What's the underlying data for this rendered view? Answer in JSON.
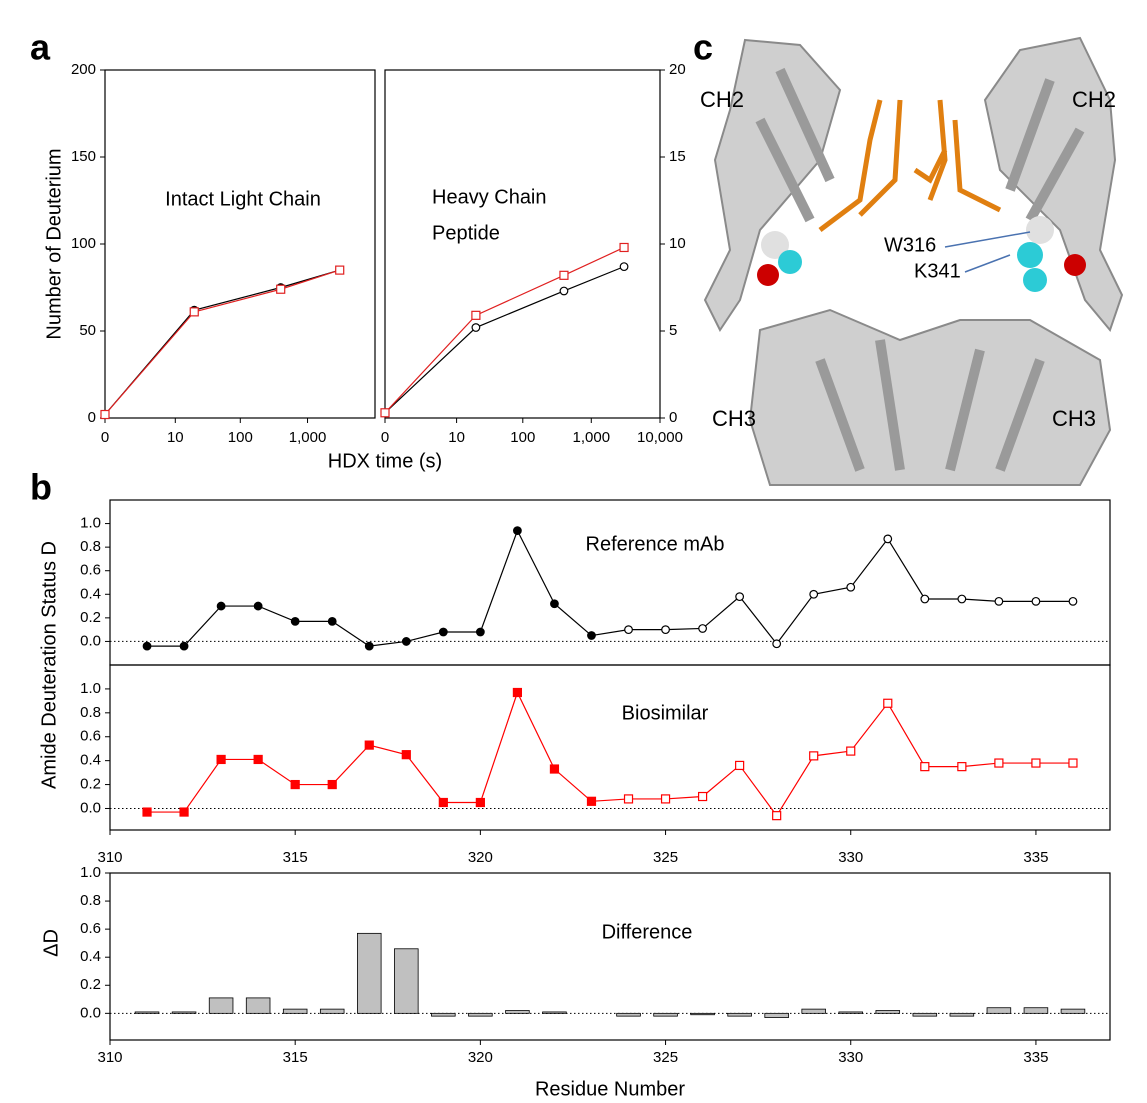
{
  "panel_labels": [
    "a",
    "b",
    "c"
  ],
  "structure_labels": [
    "CH2",
    "CH2",
    "CH3",
    "CH3",
    "W316",
    "K341"
  ],
  "chart_data": [
    {
      "type": "line",
      "annotation": [
        "Intact Light Chain"
      ],
      "ylabel": "Number of Deuterium",
      "xlabel": "HDX time (s)",
      "xscale": "symlog",
      "x": [
        0,
        20,
        400,
        3000
      ],
      "xlim": [
        0,
        10000
      ],
      "xticks": [
        0,
        10,
        100,
        {
          "value": 1000,
          "label": "1,000"
        }
      ],
      "ylim": [
        0,
        200
      ],
      "yticks": [
        0,
        50,
        100,
        150,
        200
      ],
      "y_axis_side": "left",
      "series": [
        {
          "color": "#000000",
          "marker": "circle",
          "filled": true,
          "values": [
            2,
            62,
            75,
            85
          ]
        },
        {
          "color": "#e02020",
          "marker": "square",
          "filled": false,
          "values": [
            2,
            61,
            74,
            85
          ]
        }
      ]
    },
    {
      "type": "line",
      "annotation": [
        "Heavy Chain",
        "Peptide"
      ],
      "xscale": "symlog",
      "x": [
        0,
        20,
        400,
        3000
      ],
      "xlim": [
        0,
        10000
      ],
      "xticks": [
        0,
        10,
        100,
        {
          "value": 1000,
          "label": "1,000"
        },
        {
          "value": 10000,
          "label": "10,000"
        }
      ],
      "ylim": [
        0,
        20
      ],
      "yticks": [
        0,
        5,
        10,
        15,
        20
      ],
      "y_axis_side": "right",
      "series": [
        {
          "color": "#000000",
          "marker": "circle",
          "filled": false,
          "values": [
            0.3,
            5.2,
            7.3,
            8.7
          ]
        },
        {
          "color": "#e02020",
          "marker": "square",
          "filled": false,
          "values": [
            0.3,
            5.9,
            8.2,
            9.8
          ]
        }
      ]
    },
    {
      "type": "line",
      "title": "Reference mAb",
      "title_color": "#000000",
      "ylabel": "Amide Deuteration Status D",
      "x": [
        311,
        312,
        313,
        314,
        315,
        316,
        317,
        318,
        319,
        320,
        321,
        322,
        323,
        324,
        325,
        326,
        327,
        328,
        329,
        330,
        331,
        332,
        333,
        334,
        335,
        336
      ],
      "xlim": [
        310,
        337
      ],
      "ylim": [
        -0.2,
        1.2
      ],
      "yticks": [
        {
          "value": 0,
          "label": "0.0"
        },
        0.2,
        0.4,
        0.6,
        0.8,
        {
          "value": 1,
          "label": "1.0"
        }
      ],
      "zero_line": true,
      "series": [
        {
          "color": "#000000",
          "marker": "circle",
          "filled": [
            true,
            true,
            true,
            true,
            true,
            true,
            true,
            true,
            true,
            true,
            true,
            true,
            true,
            false,
            false,
            false,
            false,
            false,
            false,
            false,
            false,
            false,
            false,
            false,
            false,
            false
          ],
          "values": [
            -0.04,
            -0.04,
            0.3,
            0.3,
            0.17,
            0.17,
            -0.04,
            0.0,
            0.08,
            0.08,
            0.94,
            0.32,
            0.05,
            0.1,
            0.1,
            0.11,
            0.38,
            -0.02,
            0.4,
            0.46,
            0.87,
            0.36,
            0.36,
            0.34,
            0.34,
            0.34
          ]
        }
      ]
    },
    {
      "type": "line",
      "title": "Biosimilar",
      "title_color": "#ff0000",
      "x": [
        311,
        312,
        313,
        314,
        315,
        316,
        317,
        318,
        319,
        320,
        321,
        322,
        323,
        324,
        325,
        326,
        327,
        328,
        329,
        330,
        331,
        332,
        333,
        334,
        335,
        336
      ],
      "xlim": [
        310,
        337
      ],
      "xticks": [
        310,
        315,
        320,
        325,
        330,
        335
      ],
      "ylim": [
        -0.18,
        1.2
      ],
      "yticks": [
        {
          "value": 0,
          "label": "0.0"
        },
        0.2,
        0.4,
        0.6,
        0.8,
        {
          "value": 1,
          "label": "1.0"
        }
      ],
      "zero_line": true,
      "series": [
        {
          "color": "#ff0000",
          "marker": "square",
          "filled": [
            true,
            true,
            true,
            true,
            true,
            true,
            true,
            true,
            true,
            true,
            true,
            true,
            true,
            false,
            false,
            false,
            false,
            false,
            false,
            false,
            false,
            false,
            false,
            false,
            false,
            false
          ],
          "values": [
            -0.03,
            -0.03,
            0.41,
            0.41,
            0.2,
            0.2,
            0.53,
            0.45,
            0.05,
            0.05,
            0.97,
            0.33,
            0.06,
            0.08,
            0.08,
            0.1,
            0.36,
            -0.06,
            0.44,
            0.48,
            0.88,
            0.35,
            0.35,
            0.38,
            0.38,
            0.38
          ]
        }
      ]
    },
    {
      "type": "bar",
      "title": "Difference",
      "title_color": "#000000",
      "ylabel": "ΔD",
      "xlabel": "Residue Number",
      "x": [
        311,
        312,
        313,
        314,
        315,
        316,
        317,
        318,
        319,
        320,
        321,
        322,
        323,
        324,
        325,
        326,
        327,
        328,
        329,
        330,
        331,
        332,
        333,
        334,
        335,
        336
      ],
      "xlim": [
        310,
        337
      ],
      "xticks": [
        310,
        315,
        320,
        325,
        330,
        335
      ],
      "ylim": [
        -0.19,
        1.0
      ],
      "yticks": [
        {
          "value": 0,
          "label": "0.0"
        },
        0.2,
        0.4,
        0.6,
        0.8,
        {
          "value": 1,
          "label": "1.0"
        }
      ],
      "zero_line": true,
      "color": "#c0c0c0",
      "values": [
        0.01,
        0.01,
        0.11,
        0.11,
        0.03,
        0.03,
        0.57,
        0.46,
        -0.02,
        -0.02,
        0.02,
        0.01,
        0,
        -0.02,
        -0.02,
        -0.01,
        -0.02,
        -0.03,
        0.03,
        0.01,
        0.02,
        -0.02,
        -0.02,
        0.04,
        0.04,
        0.03
      ]
    }
  ]
}
